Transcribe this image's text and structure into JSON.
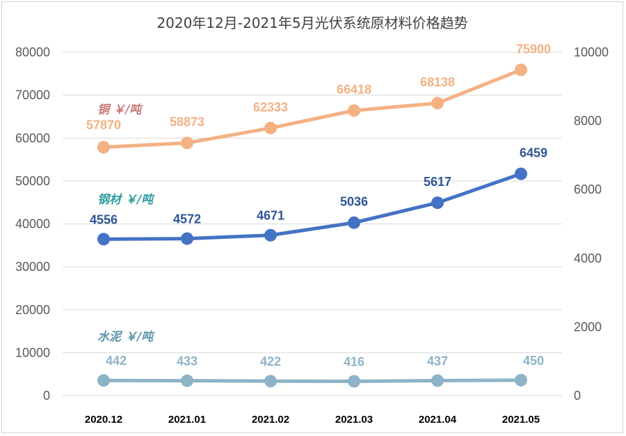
{
  "chart_data": {
    "type": "line",
    "title": "2020年12月-2021年5月光伏系统原材料价格趋势",
    "categories": [
      "2020.12",
      "2021.01",
      "2021.02",
      "2021.03",
      "2021.04",
      "2021.05"
    ],
    "y_left": {
      "ylim": [
        0,
        80000
      ],
      "ticks": [
        "0",
        "10000",
        "20000",
        "30000",
        "40000",
        "50000",
        "60000",
        "70000",
        "80000"
      ]
    },
    "y_right": {
      "ylim": [
        0,
        10000
      ],
      "ticks": [
        "0",
        "2000",
        "4000",
        "6000",
        "8000",
        "10000"
      ]
    },
    "grid": true,
    "series": [
      {
        "name": "铜 ￥/吨",
        "axis": "left",
        "color": "#f4b183",
        "values": [
          57870,
          58873,
          62333,
          66418,
          68138,
          75900
        ],
        "labels": [
          "57870",
          "58873",
          "62333",
          "66418",
          "68138",
          "75900"
        ]
      },
      {
        "name": "钢材 ￥/吨",
        "axis": "right",
        "color": "#4472c4",
        "values": [
          4556,
          4572,
          4671,
          5036,
          5617,
          6459
        ],
        "labels": [
          "4556",
          "4572",
          "4671",
          "5036",
          "5617",
          "6459"
        ]
      },
      {
        "name": "水泥 ￥/吨",
        "axis": "right",
        "color": "#8db3c7",
        "values": [
          442,
          433,
          422,
          416,
          437,
          450
        ],
        "labels": [
          "442",
          "433",
          "422",
          "416",
          "437",
          "450"
        ]
      }
    ],
    "series_label_colors": [
      "#c9787a",
      "#2f9ea0",
      "#5f94a8"
    ]
  }
}
